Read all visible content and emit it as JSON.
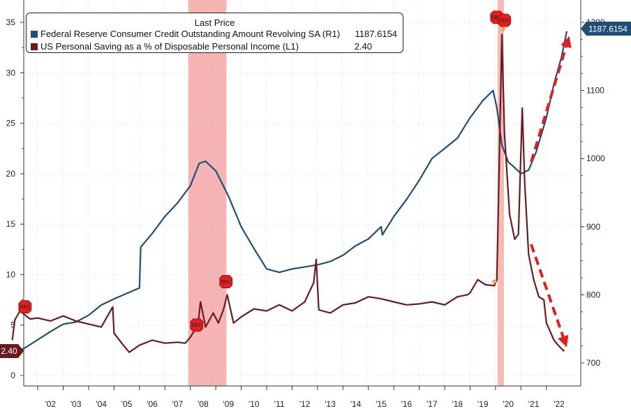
{
  "legend": {
    "header": "Last Price",
    "items": [
      {
        "name": "Federal Reserve Consumer Credit Outstanding Amount Revolving SA  (R1)",
        "value": "1187.6154",
        "color": "#1f4e79"
      },
      {
        "name": "US Personal Saving as a % of Disposable Personal Income  (L1)",
        "value": "2.40",
        "color": "#6b1a1f"
      }
    ]
  },
  "chart_data": {
    "type": "line",
    "x_tick_labels": [
      "'02",
      "'03",
      "'04",
      "'05",
      "'06",
      "'07",
      "'08",
      "'09",
      "'10",
      "'11",
      "'12",
      "'13",
      "'14",
      "'15",
      "'16",
      "'17",
      "'18",
      "'19",
      "'20",
      "'21",
      "'22"
    ],
    "left_axis": {
      "ticks": [
        0,
        5,
        10,
        15,
        20,
        25,
        30,
        35
      ],
      "range": [
        -1,
        36
      ]
    },
    "right_axis": {
      "ticks": [
        700,
        800,
        900,
        1000,
        1100,
        1200
      ],
      "range": [
        690,
        1210
      ]
    },
    "last_value_labels": {
      "left": "2.40",
      "right": "1187.6154"
    },
    "recession_shading": [
      [
        2007.92,
        2009.42
      ],
      [
        2020.08,
        2020.33
      ]
    ],
    "recession_flag_label": "REC",
    "series": [
      {
        "name": "Federal Reserve Consumer Credit Outstanding Amount Revolving SA  (R1)",
        "axis": "right",
        "color": "#1f4e79",
        "points": [
          [
            2001.0,
            714
          ],
          [
            2001.5,
            722
          ],
          [
            2002.0,
            734
          ],
          [
            2002.5,
            746
          ],
          [
            2003.0,
            757
          ],
          [
            2003.5,
            760
          ],
          [
            2004.0,
            770
          ],
          [
            2004.5,
            785
          ],
          [
            2005.0,
            794
          ],
          [
            2005.5,
            802
          ],
          [
            2006.0,
            810
          ],
          [
            2006.05,
            870
          ],
          [
            2006.5,
            890
          ],
          [
            2007.0,
            915
          ],
          [
            2007.5,
            935
          ],
          [
            2008.0,
            960
          ],
          [
            2008.35,
            993
          ],
          [
            2008.6,
            996
          ],
          [
            2009.0,
            982
          ],
          [
            2009.5,
            945
          ],
          [
            2010.0,
            900
          ],
          [
            2010.5,
            868
          ],
          [
            2011.0,
            838
          ],
          [
            2011.5,
            833
          ],
          [
            2012.0,
            838
          ],
          [
            2012.5,
            841
          ],
          [
            2013.0,
            844
          ],
          [
            2013.5,
            849
          ],
          [
            2014.0,
            858
          ],
          [
            2014.5,
            872
          ],
          [
            2015.0,
            882
          ],
          [
            2015.5,
            900
          ],
          [
            2015.55,
            888
          ],
          [
            2016.0,
            915
          ],
          [
            2016.5,
            940
          ],
          [
            2017.0,
            968
          ],
          [
            2017.5,
            1000
          ],
          [
            2018.0,
            1015
          ],
          [
            2018.5,
            1030
          ],
          [
            2019.0,
            1060
          ],
          [
            2019.5,
            1085
          ],
          [
            2019.9,
            1100
          ],
          [
            2020.05,
            1075
          ],
          [
            2020.25,
            1020
          ],
          [
            2020.5,
            995
          ],
          [
            2020.8,
            985
          ],
          [
            2021.0,
            978
          ],
          [
            2021.3,
            983
          ],
          [
            2021.6,
            1010
          ],
          [
            2022.0,
            1060
          ],
          [
            2022.3,
            1110
          ],
          [
            2022.6,
            1150
          ],
          [
            2022.8,
            1187
          ]
        ]
      },
      {
        "name": "US Personal Saving as a % of Disposable Personal Income  (L1)",
        "axis": "left",
        "color": "#6b1a1f",
        "points": [
          [
            2001.0,
            3.5
          ],
          [
            2001.1,
            5.5
          ],
          [
            2001.3,
            6.4
          ],
          [
            2001.7,
            5.6
          ],
          [
            2002.0,
            5.7
          ],
          [
            2002.5,
            5.4
          ],
          [
            2003.0,
            5.9
          ],
          [
            2003.5,
            5.4
          ],
          [
            2004.0,
            5.1
          ],
          [
            2004.5,
            4.8
          ],
          [
            2004.95,
            6.8
          ],
          [
            2005.0,
            4.2
          ],
          [
            2005.3,
            3.2
          ],
          [
            2005.6,
            2.3
          ],
          [
            2006.0,
            3.0
          ],
          [
            2006.5,
            3.5
          ],
          [
            2007.0,
            3.2
          ],
          [
            2007.5,
            3.3
          ],
          [
            2007.8,
            3.2
          ],
          [
            2008.0,
            3.8
          ],
          [
            2008.3,
            5.0
          ],
          [
            2008.4,
            7.3
          ],
          [
            2008.6,
            4.8
          ],
          [
            2008.9,
            6.2
          ],
          [
            2009.1,
            5.2
          ],
          [
            2009.3,
            6.5
          ],
          [
            2009.45,
            8.0
          ],
          [
            2009.7,
            5.2
          ],
          [
            2010.0,
            5.8
          ],
          [
            2010.5,
            6.6
          ],
          [
            2011.0,
            6.4
          ],
          [
            2011.5,
            7.0
          ],
          [
            2012.0,
            6.4
          ],
          [
            2012.5,
            7.3
          ],
          [
            2012.85,
            9.2
          ],
          [
            2012.95,
            11.5
          ],
          [
            2013.05,
            6.5
          ],
          [
            2013.5,
            6.2
          ],
          [
            2014.0,
            7.0
          ],
          [
            2014.5,
            7.2
          ],
          [
            2015.0,
            7.8
          ],
          [
            2015.5,
            7.6
          ],
          [
            2016.0,
            7.3
          ],
          [
            2016.5,
            7.0
          ],
          [
            2017.0,
            7.1
          ],
          [
            2017.5,
            7.3
          ],
          [
            2018.0,
            7.0
          ],
          [
            2018.5,
            7.8
          ],
          [
            2018.9,
            8.0
          ],
          [
            2019.0,
            8.2
          ],
          [
            2019.3,
            9.5
          ],
          [
            2019.6,
            9.0
          ],
          [
            2019.95,
            8.9
          ],
          [
            2020.05,
            9.5
          ],
          [
            2020.25,
            33.8
          ],
          [
            2020.35,
            24.0
          ],
          [
            2020.55,
            16.0
          ],
          [
            2020.75,
            13.5
          ],
          [
            2020.9,
            14.0
          ],
          [
            2021.05,
            26.5
          ],
          [
            2021.15,
            19.0
          ],
          [
            2021.3,
            12.0
          ],
          [
            2021.5,
            9.5
          ],
          [
            2021.7,
            7.8
          ],
          [
            2021.9,
            7.5
          ],
          [
            2022.0,
            5.2
          ],
          [
            2022.3,
            3.5
          ],
          [
            2022.5,
            2.9
          ],
          [
            2022.7,
            2.4
          ]
        ]
      }
    ],
    "annotations": [
      {
        "type": "arrow",
        "direction": "up",
        "color": "#e02020",
        "from": [
          2021.4,
          995
        ],
        "to": [
          2022.9,
          1180
        ],
        "axis": "right"
      },
      {
        "type": "arrow",
        "direction": "down",
        "color": "#e02020",
        "from": [
          2021.4,
          13.0
        ],
        "to": [
          2022.8,
          2.8
        ],
        "axis": "left"
      }
    ]
  }
}
